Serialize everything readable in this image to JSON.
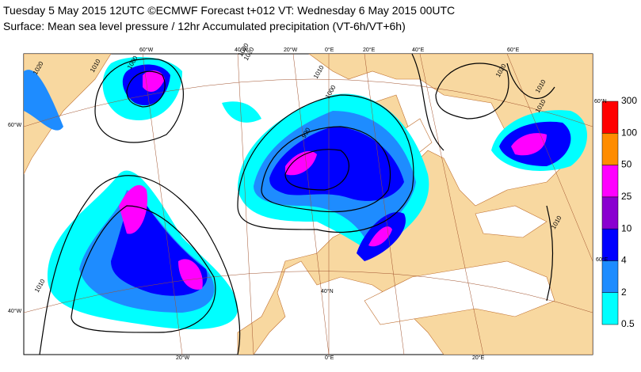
{
  "header": {
    "title": "Tuesday 5 May 2015 12UTC ©ECMWF Forecast t+012 VT: Wednesday 6 May 2015 00UTC",
    "subtitle": "Surface: Mean sea level pressure / 12hr Accumulated precipitation (VT-6h/VT+6h)"
  },
  "colorbar": {
    "levels": [
      0.5,
      2,
      4,
      10,
      25,
      50,
      100,
      300
    ],
    "colors": [
      "#00ffff",
      "#1e8cff",
      "#0000ff",
      "#8a00d0",
      "#ff00ff",
      "#ff8c00",
      "#ff0000"
    ]
  },
  "graticule_labels": [
    "60°W",
    "40°W",
    "20°W",
    "0°E",
    "20°E",
    "40°E",
    "60°E",
    "60°N",
    "40°N",
    "60°W",
    "40°W",
    "20°W",
    "0°E",
    "20°E",
    "60°E"
  ],
  "isobar_labels": [
    "1020",
    "1010",
    "1000",
    "1020",
    "990",
    "1010",
    "1000",
    "1010",
    "1020",
    "1010",
    "1010",
    "1010",
    "1020"
  ]
}
